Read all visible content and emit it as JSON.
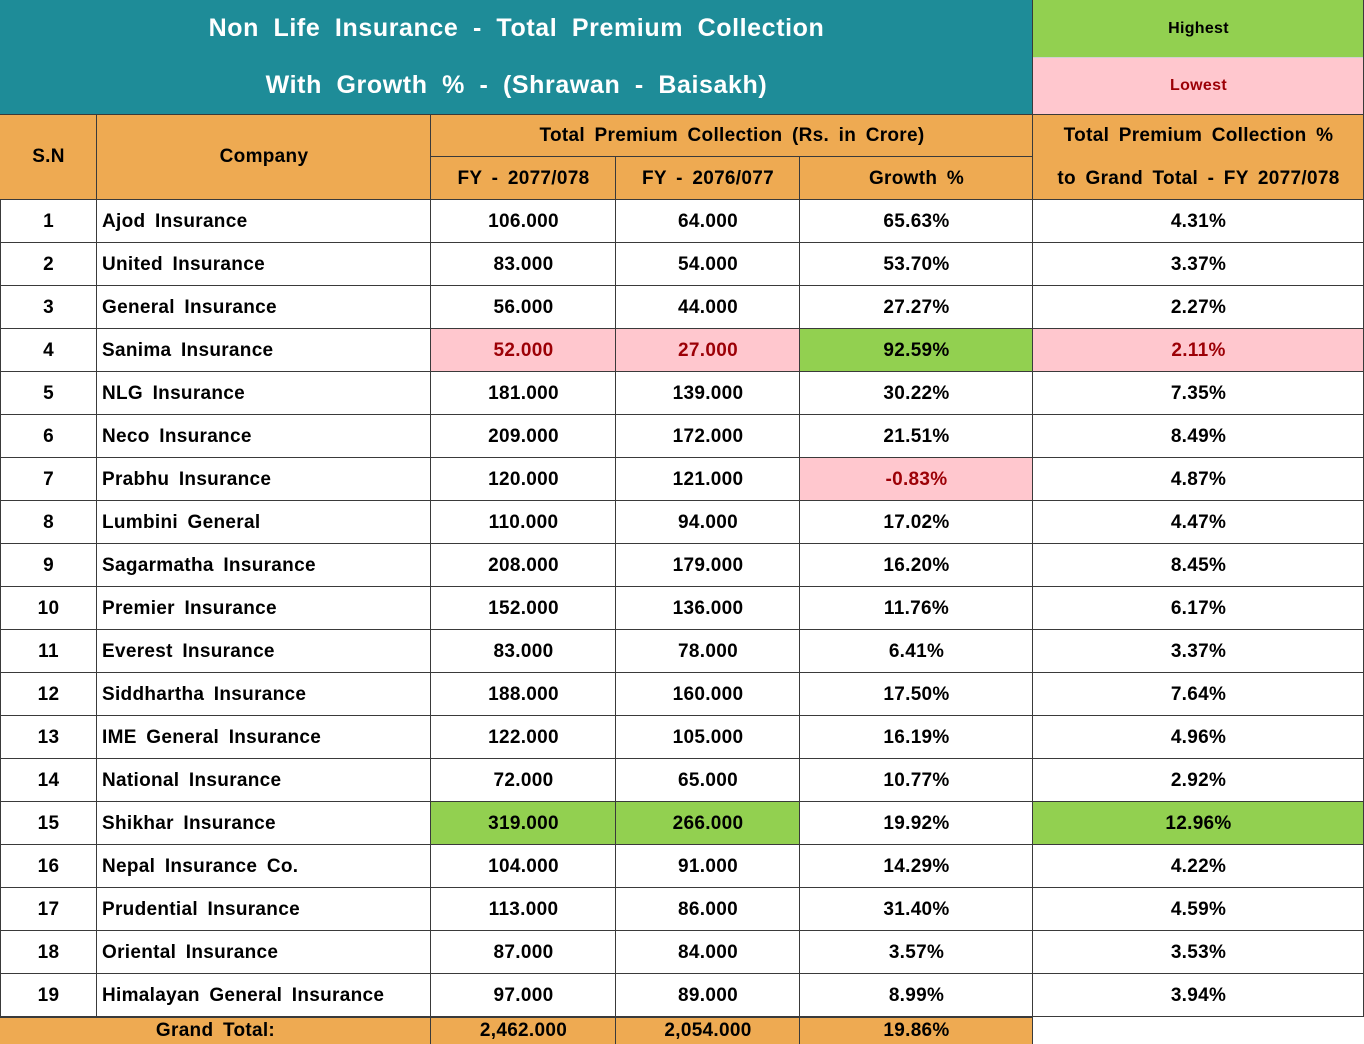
{
  "title": {
    "line1": "Non Life Insurance - Total Premium Collection",
    "line2": "With Growth % - (Shrawan - Baisakh)"
  },
  "legend": {
    "highest": "Highest",
    "lowest": "Lowest",
    "highest_color": "#92d050",
    "lowest_color": "#ffc7ce",
    "lowest_text_color": "#9c0006"
  },
  "header": {
    "sn": "S.N",
    "company": "Company",
    "group": "Total Premium Collection (Rs. in Crore)",
    "fy_current": "FY - 2077/078",
    "fy_previous": "FY - 2076/077",
    "growth": "Growth %",
    "share_line1": "Total Premium Collection %",
    "share_line2": "to Grand Total - FY 2077/078"
  },
  "rows": [
    {
      "sn": "1",
      "company": "Ajod Insurance",
      "fy_current": "106.000",
      "fy_previous": "64.000",
      "growth": "65.63%",
      "share": "4.31%",
      "hl": {}
    },
    {
      "sn": "2",
      "company": "United Insurance",
      "fy_current": "83.000",
      "fy_previous": "54.000",
      "growth": "53.70%",
      "share": "3.37%",
      "hl": {}
    },
    {
      "sn": "3",
      "company": "General Insurance",
      "fy_current": "56.000",
      "fy_previous": "44.000",
      "growth": "27.27%",
      "share": "2.27%",
      "hl": {}
    },
    {
      "sn": "4",
      "company": "Sanima Insurance",
      "fy_current": "52.000",
      "fy_previous": "27.000",
      "growth": "92.59%",
      "share": "2.11%",
      "hl": {
        "fy_current": "lowest",
        "fy_previous": "lowest",
        "growth": "highest",
        "share": "lowest"
      }
    },
    {
      "sn": "5",
      "company": "NLG Insurance",
      "fy_current": "181.000",
      "fy_previous": "139.000",
      "growth": "30.22%",
      "share": "7.35%",
      "hl": {}
    },
    {
      "sn": "6",
      "company": "Neco Insurance",
      "fy_current": "209.000",
      "fy_previous": "172.000",
      "growth": "21.51%",
      "share": "8.49%",
      "hl": {}
    },
    {
      "sn": "7",
      "company": "Prabhu Insurance",
      "fy_current": "120.000",
      "fy_previous": "121.000",
      "growth": "-0.83%",
      "share": "4.87%",
      "hl": {
        "growth": "lowest"
      }
    },
    {
      "sn": "8",
      "company": "Lumbini General",
      "fy_current": "110.000",
      "fy_previous": "94.000",
      "growth": "17.02%",
      "share": "4.47%",
      "hl": {}
    },
    {
      "sn": "9",
      "company": "Sagarmatha Insurance",
      "fy_current": "208.000",
      "fy_previous": "179.000",
      "growth": "16.20%",
      "share": "8.45%",
      "hl": {}
    },
    {
      "sn": "10",
      "company": "Premier Insurance",
      "fy_current": "152.000",
      "fy_previous": "136.000",
      "growth": "11.76%",
      "share": "6.17%",
      "hl": {}
    },
    {
      "sn": "11",
      "company": "Everest Insurance",
      "fy_current": "83.000",
      "fy_previous": "78.000",
      "growth": "6.41%",
      "share": "3.37%",
      "hl": {}
    },
    {
      "sn": "12",
      "company": "Siddhartha Insurance",
      "fy_current": "188.000",
      "fy_previous": "160.000",
      "growth": "17.50%",
      "share": "7.64%",
      "hl": {}
    },
    {
      "sn": "13",
      "company": "IME General Insurance",
      "fy_current": "122.000",
      "fy_previous": "105.000",
      "growth": "16.19%",
      "share": "4.96%",
      "hl": {}
    },
    {
      "sn": "14",
      "company": "National  Insurance",
      "fy_current": "72.000",
      "fy_previous": "65.000",
      "growth": "10.77%",
      "share": "2.92%",
      "hl": {}
    },
    {
      "sn": "15",
      "company": "Shikhar Insurance",
      "fy_current": "319.000",
      "fy_previous": "266.000",
      "growth": "19.92%",
      "share": "12.96%",
      "hl": {
        "fy_current": "highest",
        "fy_previous": "highest",
        "share": "highest"
      }
    },
    {
      "sn": "16",
      "company": "Nepal Insurance Co.",
      "fy_current": "104.000",
      "fy_previous": "91.000",
      "growth": "14.29%",
      "share": "4.22%",
      "hl": {}
    },
    {
      "sn": "17",
      "company": "Prudential Insurance",
      "fy_current": "113.000",
      "fy_previous": "86.000",
      "growth": "31.40%",
      "share": "4.59%",
      "hl": {}
    },
    {
      "sn": "18",
      "company": "Oriental Insurance",
      "fy_current": "87.000",
      "fy_previous": "84.000",
      "growth": "3.57%",
      "share": "3.53%",
      "hl": {}
    },
    {
      "sn": "19",
      "company": "Himalayan General Insurance",
      "fy_current": "97.000",
      "fy_previous": "89.000",
      "growth": "8.99%",
      "share": "3.94%",
      "hl": {}
    }
  ],
  "grand_total": {
    "label": "Grand Total:",
    "fy_current": "2,462.000",
    "fy_previous": "2,054.000",
    "growth": "19.86%"
  }
}
